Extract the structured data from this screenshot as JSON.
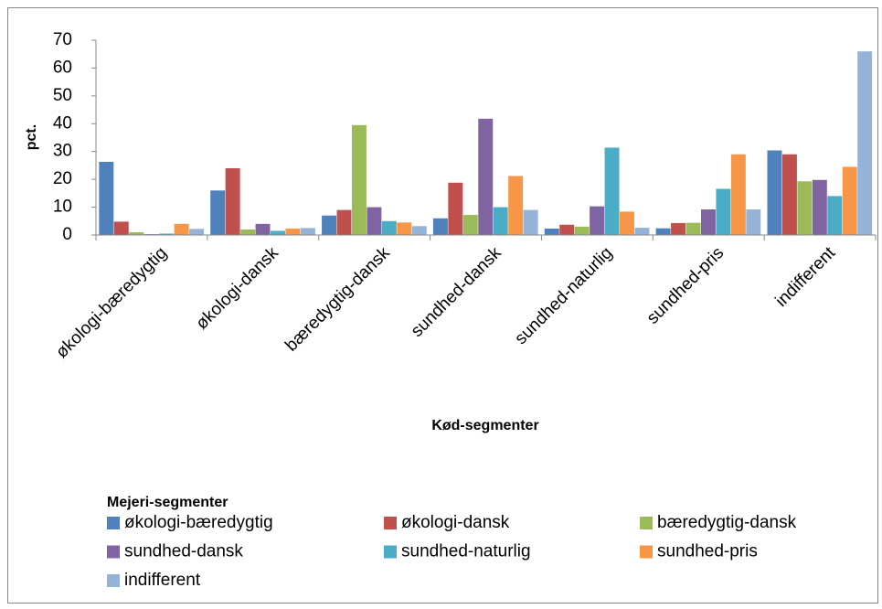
{
  "chart_data": {
    "type": "bar",
    "y_label": "pct.",
    "x_label": "Kød-segmenter",
    "legend_title": "Mejeri-segmenter",
    "legend_position": "bottom",
    "categories": [
      "økologi-bæredygtig",
      "økologi-dansk",
      "bæredygtig-dansk",
      "sundhed-dansk",
      "sundhed-naturlig",
      "sundhed-pris",
      "indifferent"
    ],
    "series": [
      {
        "name": "økologi-bæredygtig",
        "color": "#4f81bd",
        "values": [
          26.3,
          16,
          7,
          6,
          2.3,
          2.4,
          30.4
        ]
      },
      {
        "name": "økologi-dansk",
        "color": "#c0504d",
        "values": [
          4.8,
          24,
          9,
          18.8,
          3.7,
          4.3,
          29
        ]
      },
      {
        "name": "bæredygtig-dansk",
        "color": "#9bbb59",
        "values": [
          1,
          2,
          39.5,
          7.2,
          3,
          4.4,
          19.3
        ]
      },
      {
        "name": "sundhed-dansk",
        "color": "#8064a2",
        "values": [
          0.3,
          4,
          10,
          41.8,
          10.3,
          9.2,
          19.8
        ]
      },
      {
        "name": "sundhed-naturlig",
        "color": "#4bacc6",
        "values": [
          0.5,
          1.5,
          5,
          10,
          31.4,
          16.6,
          14
        ]
      },
      {
        "name": "sundhed-pris",
        "color": "#f79646",
        "values": [
          4,
          2.3,
          4.5,
          21.2,
          8.4,
          29,
          24.5
        ]
      },
      {
        "name": "indifferent",
        "color": "#95b3d7",
        "values": [
          2.2,
          2.5,
          3.2,
          9,
          2.6,
          9.2,
          66
        ]
      }
    ],
    "ylim": [
      0,
      70
    ],
    "yticks": [
      0,
      10,
      20,
      30,
      40,
      50,
      60,
      70
    ],
    "grid": false
  }
}
